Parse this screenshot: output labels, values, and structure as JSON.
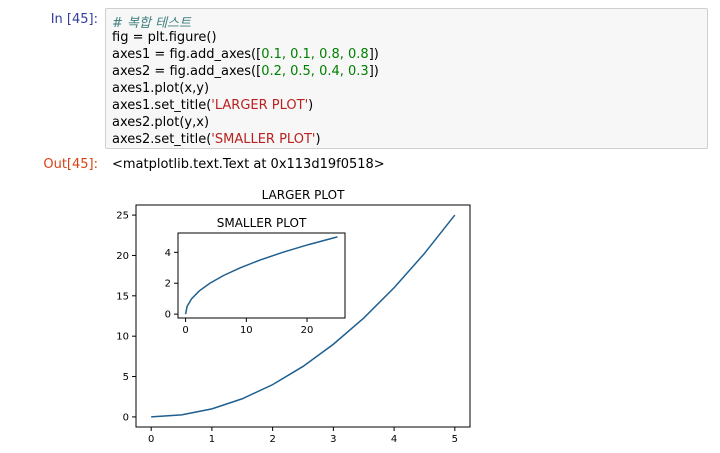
{
  "cell": {
    "in_prompt": "In [45]:",
    "out_prompt": "Out[45]:",
    "code": {
      "l1": "# 복합 테스트",
      "l2": "fig = plt.figure()",
      "l3a": "axes1 = fig.add_axes([",
      "l3n": "0.1, 0.1, 0.8, 0.8",
      "l3b": "])",
      "l4a": "axes2 = fig.add_axes([",
      "l4n": "0.2, 0.5, 0.4, 0.3",
      "l4b": "])",
      "l5": "axes1.plot(x,y)",
      "l6a": "axes1.set_title(",
      "l6s": "'LARGER PLOT'",
      "l6b": ")",
      "l7": "axes2.plot(y,x)",
      "l8a": "axes2.set_title(",
      "l8s": "'SMALLER PLOT'",
      "l8b": ")"
    },
    "output_text": "<matplotlib.text.Text at 0x113d19f0518>"
  },
  "colors": {
    "line": "#1f5f8f",
    "in_prompt": "#303f9f",
    "out_prompt": "#d84315"
  },
  "chart_data": [
    {
      "type": "line",
      "title": "LARGER PLOT",
      "xlim": [
        -0.25,
        5.25
      ],
      "ylim": [
        -1.25,
        26.25
      ],
      "xticks": [
        0,
        1,
        2,
        3,
        4,
        5
      ],
      "yticks": [
        0,
        5,
        10,
        15,
        20,
        25
      ],
      "x": [
        0,
        0.5,
        1,
        1.5,
        2,
        2.5,
        3,
        3.5,
        4,
        4.5,
        5
      ],
      "y": [
        0,
        0.25,
        1,
        2.25,
        4,
        6.25,
        9,
        12.25,
        16,
        20.25,
        25
      ]
    },
    {
      "type": "line",
      "title": "SMALLER PLOT",
      "xlim": [
        -1.25,
        26.25
      ],
      "ylim": [
        -0.25,
        5.25
      ],
      "xticks": [
        0,
        10,
        20
      ],
      "yticks": [
        0,
        2,
        4
      ],
      "x": [
        0,
        0.25,
        1,
        2.25,
        4,
        6.25,
        9,
        12.25,
        16,
        20.25,
        25
      ],
      "y": [
        0,
        0.5,
        1,
        1.5,
        2,
        2.5,
        3,
        3.5,
        4,
        4.5,
        5
      ]
    }
  ]
}
